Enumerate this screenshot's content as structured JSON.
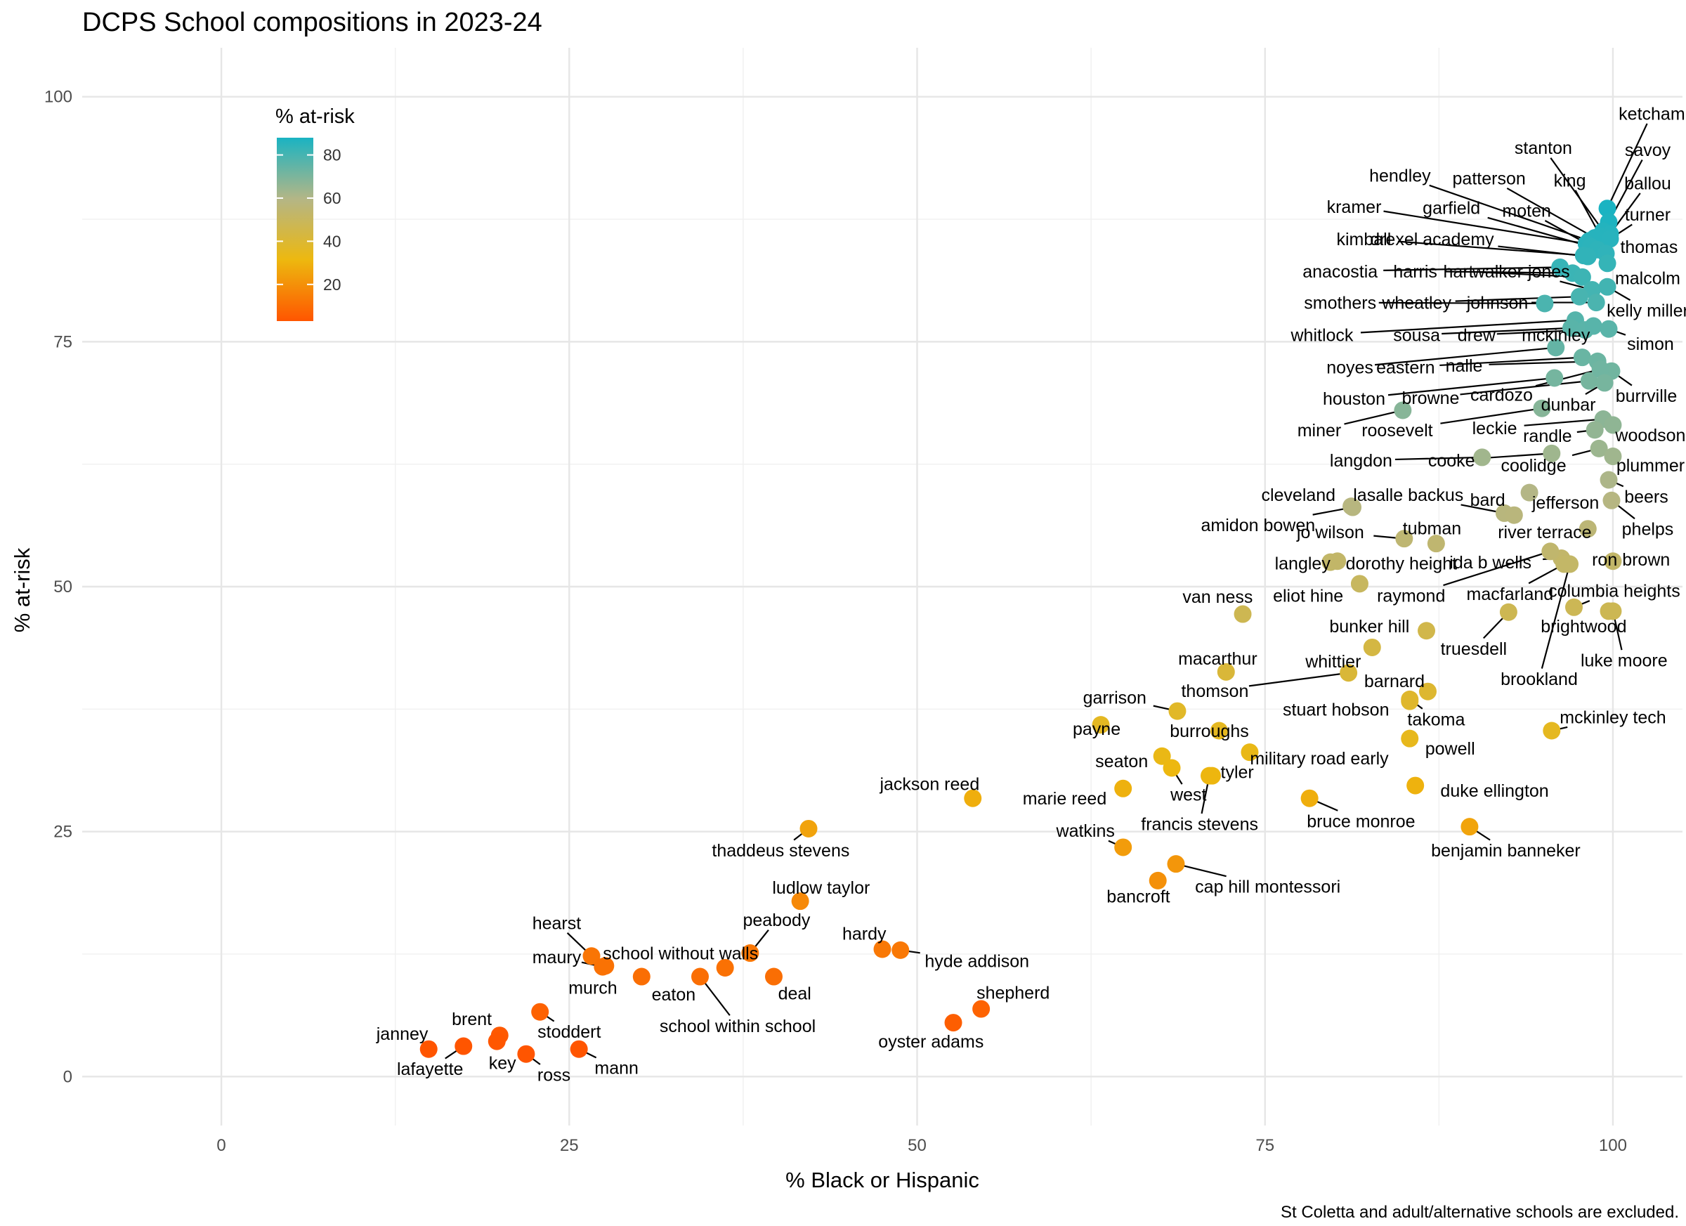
{
  "chart_data": {
    "type": "scatter",
    "title": "DCPS School compositions in 2023-24",
    "xlabel": "% Black or Hispanic",
    "ylabel": "% at-risk",
    "caption": "St Coletta and adult/alternative schools are excluded.",
    "xlim": [
      -10,
      105
    ],
    "ylim": [
      -5,
      105
    ],
    "x_ticks": [
      0,
      25,
      50,
      75,
      100
    ],
    "y_ticks": [
      0,
      25,
      50,
      75,
      100
    ],
    "grid": true,
    "legend": {
      "title": "% at-risk",
      "placement": "top-left",
      "ticks": [
        20,
        40,
        60,
        80
      ],
      "range": [
        3,
        88
      ],
      "colors": [
        "#FF5500",
        "#EDB80F",
        "#B4B686",
        "#1AB3C2"
      ]
    },
    "points": [
      {
        "name": "ketcham",
        "x": 99.6,
        "y": 88.6,
        "label": {
          "x": 102.8,
          "y": 98.3
        }
      },
      {
        "name": "savoy",
        "x": 99.7,
        "y": 87.2,
        "label": {
          "x": 102.5,
          "y": 94.6
        }
      },
      {
        "name": "stanton",
        "x": 99.3,
        "y": 86.3,
        "label": {
          "x": 95.0,
          "y": 94.8
        }
      },
      {
        "name": "ballou",
        "x": 99.8,
        "y": 86.0,
        "label": {
          "x": 102.5,
          "y": 91.2
        }
      },
      {
        "name": "king",
        "x": 99.1,
        "y": 85.8,
        "label": {
          "x": 96.9,
          "y": 91.5
        }
      },
      {
        "name": "hendley",
        "x": 98.3,
        "y": 85.3,
        "label": {
          "x": 84.7,
          "y": 92.0
        }
      },
      {
        "name": "patterson",
        "x": 98.7,
        "y": 85.6,
        "label": {
          "x": 91.1,
          "y": 91.7
        }
      },
      {
        "name": "turner",
        "x": 99.8,
        "y": 85.5,
        "label": {
          "x": 102.5,
          "y": 88.0
        }
      },
      {
        "name": "kramer",
        "x": 98.1,
        "y": 85.0,
        "label": {
          "x": 81.4,
          "y": 88.8
        }
      },
      {
        "name": "garfield",
        "x": 98.4,
        "y": 84.7,
        "label": {
          "x": 88.4,
          "y": 88.7
        }
      },
      {
        "name": "moten",
        "x": 98.9,
        "y": 84.4,
        "label": {
          "x": 93.8,
          "y": 88.4
        }
      },
      {
        "name": "thomas",
        "x": 99.5,
        "y": 84.0,
        "label": {
          "x": 102.6,
          "y": 84.7
        }
      },
      {
        "name": "kimball",
        "x": 97.9,
        "y": 83.8,
        "label": {
          "x": 82.1,
          "y": 85.5
        }
      },
      {
        "name": "drexel academy",
        "x": 98.2,
        "y": 83.7,
        "label": {
          "x": 87.0,
          "y": 85.5
        }
      },
      {
        "name": "malcolm",
        "x": 99.6,
        "y": 83.0,
        "label": {
          "x": 102.5,
          "y": 81.5
        }
      },
      {
        "name": "anacostia",
        "x": 96.2,
        "y": 82.6,
        "label": {
          "x": 80.4,
          "y": 82.2
        }
      },
      {
        "name": "harris",
        "x": 97.1,
        "y": 82.0,
        "label": {
          "x": 85.8,
          "y": 82.2
        }
      },
      {
        "name": "hart",
        "x": 97.8,
        "y": 81.6,
        "label": {
          "x": 88.9,
          "y": 82.2
        }
      },
      {
        "name": "walker jones",
        "x": 98.5,
        "y": 80.3,
        "label": {
          "x": 93.4,
          "y": 82.2
        }
      },
      {
        "name": "kelly miller",
        "x": 99.6,
        "y": 80.6,
        "label": {
          "x": 102.5,
          "y": 78.2
        }
      },
      {
        "name": "smothers",
        "x": 95.1,
        "y": 78.9,
        "label": {
          "x": 80.4,
          "y": 79.0
        }
      },
      {
        "name": "wheatley",
        "x": 97.6,
        "y": 79.6,
        "label": {
          "x": 85.9,
          "y": 79.0
        }
      },
      {
        "name": "johnson",
        "x": 98.8,
        "y": 79.0,
        "label": {
          "x": 91.7,
          "y": 79.0
        }
      },
      {
        "name": "whitlock",
        "x": 97.3,
        "y": 77.2,
        "label": {
          "x": 79.1,
          "y": 75.7
        }
      },
      {
        "name": "sousa",
        "x": 97.0,
        "y": 76.4,
        "label": {
          "x": 85.9,
          "y": 75.7
        }
      },
      {
        "name": "drew",
        "x": 98.0,
        "y": 76.2,
        "label": {
          "x": 90.2,
          "y": 75.7
        }
      },
      {
        "name": "mckinley",
        "x": 98.6,
        "y": 76.6,
        "label": {
          "x": 95.9,
          "y": 75.7
        }
      },
      {
        "name": "simon",
        "x": 99.7,
        "y": 76.3,
        "label": {
          "x": 102.7,
          "y": 74.8
        }
      },
      {
        "name": "noyes",
        "x": 95.9,
        "y": 74.4,
        "label": {
          "x": 81.1,
          "y": 72.4
        }
      },
      {
        "name": "eastern",
        "x": 97.8,
        "y": 73.4,
        "label": {
          "x": 85.1,
          "y": 72.4
        }
      },
      {
        "name": "nalle",
        "x": 98.9,
        "y": 73.0,
        "label": {
          "x": 89.3,
          "y": 72.6
        }
      },
      {
        "name": "burrville",
        "x": 99.9,
        "y": 72.0,
        "label": {
          "x": 102.4,
          "y": 69.5
        }
      },
      {
        "name": "houston",
        "x": 95.8,
        "y": 71.3,
        "label": {
          "x": 81.4,
          "y": 69.2
        }
      },
      {
        "name": "browne",
        "x": 98.3,
        "y": 71.0,
        "label": {
          "x": 86.9,
          "y": 69.3
        }
      },
      {
        "name": "cardozo",
        "x": 99.1,
        "y": 72.2,
        "label": {
          "x": 92.0,
          "y": 69.6
        }
      },
      {
        "name": "dunbar",
        "x": 99.4,
        "y": 70.8,
        "label": {
          "x": 96.8,
          "y": 68.6
        }
      },
      {
        "name": "miner",
        "x": 84.9,
        "y": 68.0,
        "label": {
          "x": 78.9,
          "y": 66.0
        }
      },
      {
        "name": "roosevelt",
        "x": 94.9,
        "y": 68.2,
        "label": {
          "x": 84.5,
          "y": 66.0
        }
      },
      {
        "name": "leckie",
        "x": 99.3,
        "y": 67.1,
        "label": {
          "x": 91.5,
          "y": 66.2
        }
      },
      {
        "name": "randle",
        "x": 98.7,
        "y": 66.0,
        "label": {
          "x": 95.3,
          "y": 65.4
        }
      },
      {
        "name": "woodson",
        "x": 100.0,
        "y": 66.5,
        "label": {
          "x": 102.7,
          "y": 65.5
        }
      },
      {
        "name": "langdon",
        "x": 90.6,
        "y": 63.2,
        "label": {
          "x": 81.9,
          "y": 62.9
        }
      },
      {
        "name": "cooke",
        "x": 95.6,
        "y": 63.6,
        "label": {
          "x": 88.4,
          "y": 62.9
        }
      },
      {
        "name": "coolidge",
        "x": 99.0,
        "y": 64.1,
        "label": {
          "x": 94.3,
          "y": 62.4
        }
      },
      {
        "name": "plummer",
        "x": 100.0,
        "y": 63.3,
        "label": {
          "x": 102.7,
          "y": 62.4
        }
      },
      {
        "name": "beers",
        "x": 99.7,
        "y": 60.9,
        "label": {
          "x": 102.4,
          "y": 59.2
        }
      },
      {
        "name": "cleveland",
        "x": 81.2,
        "y": 58.2,
        "label": {
          "x": 77.4,
          "y": 59.4
        }
      },
      {
        "name": "lasalle backus",
        "x": 92.2,
        "y": 57.5,
        "label": {
          "x": 85.3,
          "y": 59.4
        }
      },
      {
        "name": "bard",
        "x": 92.9,
        "y": 57.3,
        "label": {
          "x": 91.0,
          "y": 58.9
        }
      },
      {
        "name": "jefferson",
        "x": 94.0,
        "y": 59.6,
        "label": {
          "x": 96.6,
          "y": 58.6
        }
      },
      {
        "name": "phelps",
        "x": 99.9,
        "y": 58.8,
        "label": {
          "x": 102.5,
          "y": 55.9
        }
      },
      {
        "name": "amidon bowen",
        "x": 81.3,
        "y": 58.1,
        "label": {
          "x": 74.5,
          "y": 56.3
        }
      },
      {
        "name": "jo wilson",
        "x": 85.0,
        "y": 54.9,
        "label": {
          "x": 79.7,
          "y": 55.6
        }
      },
      {
        "name": "tubman",
        "x": 87.3,
        "y": 54.4,
        "label": {
          "x": 87.0,
          "y": 56.0
        }
      },
      {
        "name": "river terrace",
        "x": 98.2,
        "y": 55.9,
        "label": {
          "x": 95.1,
          "y": 55.6
        }
      },
      {
        "name": "langley",
        "x": 79.7,
        "y": 52.5,
        "label": {
          "x": 77.7,
          "y": 52.4
        }
      },
      {
        "name": "dorothy height",
        "x": 80.2,
        "y": 52.6,
        "label": {
          "x": 84.8,
          "y": 52.4
        }
      },
      {
        "name": "ida b wells",
        "x": 96.3,
        "y": 52.9,
        "label": {
          "x": 91.2,
          "y": 52.5
        }
      },
      {
        "name": "ron brown",
        "x": 100.0,
        "y": 52.6,
        "label": {
          "x": 101.3,
          "y": 52.8
        }
      },
      {
        "name": "van ness",
        "x": 73.4,
        "y": 47.2,
        "label": {
          "x": 71.6,
          "y": 49.0
        }
      },
      {
        "name": "eliot hine",
        "x": 81.8,
        "y": 50.3,
        "label": {
          "x": 78.1,
          "y": 49.1
        }
      },
      {
        "name": "raymond",
        "x": 95.5,
        "y": 53.6,
        "label": {
          "x": 85.5,
          "y": 49.1
        }
      },
      {
        "name": "macfarland",
        "x": 96.5,
        "y": 52.3,
        "label": {
          "x": 92.6,
          "y": 49.3
        }
      },
      {
        "name": "columbia heights",
        "x": 97.2,
        "y": 47.9,
        "label": {
          "x": 100.1,
          "y": 49.6
        }
      },
      {
        "name": "bunker hill",
        "x": 86.6,
        "y": 45.5,
        "label": {
          "x": 82.5,
          "y": 46.0
        }
      },
      {
        "name": "brightwood",
        "x": 99.7,
        "y": 47.5,
        "label": {
          "x": 97.9,
          "y": 46.0
        }
      },
      {
        "name": "truesdell",
        "x": 92.5,
        "y": 47.4,
        "label": {
          "x": 90.0,
          "y": 43.7
        }
      },
      {
        "name": "luke moore",
        "x": 100.0,
        "y": 47.5,
        "label": {
          "x": 100.8,
          "y": 42.5
        }
      },
      {
        "name": "macarthur",
        "x": 72.2,
        "y": 41.3,
        "label": {
          "x": 71.6,
          "y": 42.7
        }
      },
      {
        "name": "whittier",
        "x": 82.7,
        "y": 43.8,
        "label": {
          "x": 79.9,
          "y": 42.4
        }
      },
      {
        "name": "brookland",
        "x": 96.9,
        "y": 52.3,
        "label": {
          "x": 94.7,
          "y": 40.6
        }
      },
      {
        "name": "thomson",
        "x": 81.0,
        "y": 41.2,
        "label": {
          "x": 71.4,
          "y": 39.4
        }
      },
      {
        "name": "barnard",
        "x": 86.7,
        "y": 39.3,
        "label": {
          "x": 84.3,
          "y": 40.4
        }
      },
      {
        "name": "garrison",
        "x": 68.7,
        "y": 37.3,
        "label": {
          "x": 64.2,
          "y": 38.7
        }
      },
      {
        "name": "stuart hobson",
        "x": 85.4,
        "y": 38.3,
        "label": {
          "x": 80.1,
          "y": 37.5
        }
      },
      {
        "name": "takoma",
        "x": 85.4,
        "y": 38.5,
        "label": {
          "x": 87.3,
          "y": 36.5
        }
      },
      {
        "name": "mckinley tech",
        "x": 95.6,
        "y": 35.3,
        "label": {
          "x": 100.0,
          "y": 36.7
        }
      },
      {
        "name": "payne",
        "x": 63.2,
        "y": 35.9,
        "label": {
          "x": 62.9,
          "y": 35.5
        }
      },
      {
        "name": "burroughs",
        "x": 71.7,
        "y": 35.3,
        "label": {
          "x": 71.0,
          "y": 35.3
        }
      },
      {
        "name": "military road early",
        "x": 73.9,
        "y": 33.1,
        "label": {
          "x": 78.9,
          "y": 32.5
        }
      },
      {
        "name": "powell",
        "x": 85.4,
        "y": 34.5,
        "label": {
          "x": 88.3,
          "y": 33.5
        }
      },
      {
        "name": "seaton",
        "x": 67.6,
        "y": 32.7,
        "label": {
          "x": 64.7,
          "y": 32.2
        }
      },
      {
        "name": "tyler",
        "x": 71.2,
        "y": 30.7,
        "label": {
          "x": 73.0,
          "y": 31.1
        }
      },
      {
        "name": "marie reed",
        "x": 64.8,
        "y": 29.4,
        "label": {
          "x": 60.6,
          "y": 28.4
        }
      },
      {
        "name": "west",
        "x": 68.3,
        "y": 31.5,
        "label": {
          "x": 69.5,
          "y": 28.8
        }
      },
      {
        "name": "duke ellington",
        "x": 85.8,
        "y": 29.7,
        "label": {
          "x": 91.5,
          "y": 29.2
        }
      },
      {
        "name": "jackson reed",
        "x": 54.0,
        "y": 28.4,
        "label": {
          "x": 50.9,
          "y": 29.9
        }
      },
      {
        "name": "francis stevens",
        "x": 71.0,
        "y": 30.7,
        "label": {
          "x": 70.3,
          "y": 25.8
        }
      },
      {
        "name": "bruce monroe",
        "x": 78.2,
        "y": 28.4,
        "label": {
          "x": 81.9,
          "y": 26.1
        }
      },
      {
        "name": "watkins",
        "x": 64.8,
        "y": 23.4,
        "label": {
          "x": 62.1,
          "y": 25.1
        }
      },
      {
        "name": "thaddeus stevens",
        "x": 42.2,
        "y": 25.3,
        "label": {
          "x": 40.2,
          "y": 23.1
        }
      },
      {
        "name": "benjamin banneker",
        "x": 89.7,
        "y": 25.5,
        "label": {
          "x": 92.3,
          "y": 23.1
        }
      },
      {
        "name": "ludlow taylor",
        "x": 41.6,
        "y": 17.9,
        "label": {
          "x": 43.1,
          "y": 19.3
        }
      },
      {
        "name": "cap hill montessori",
        "x": 68.6,
        "y": 21.7,
        "label": {
          "x": 75.2,
          "y": 19.4
        }
      },
      {
        "name": "bancroft",
        "x": 67.3,
        "y": 20.0,
        "label": {
          "x": 65.9,
          "y": 18.4
        }
      },
      {
        "name": "hearst",
        "x": 26.6,
        "y": 12.3,
        "label": {
          "x": 24.1,
          "y": 15.7
        }
      },
      {
        "name": "peabody",
        "x": 38.0,
        "y": 12.6,
        "label": {
          "x": 39.9,
          "y": 16.0
        }
      },
      {
        "name": "hardy",
        "x": 47.5,
        "y": 13.0,
        "label": {
          "x": 46.2,
          "y": 14.6
        }
      },
      {
        "name": "maury",
        "x": 27.4,
        "y": 11.2,
        "label": {
          "x": 24.1,
          "y": 12.2
        }
      },
      {
        "name": "school without walls",
        "x": 36.2,
        "y": 11.1,
        "label": {
          "x": 33.0,
          "y": 12.6
        }
      },
      {
        "name": "hyde addison",
        "x": 48.8,
        "y": 12.9,
        "label": {
          "x": 54.3,
          "y": 11.8
        }
      },
      {
        "name": "murch",
        "x": 27.6,
        "y": 11.3,
        "label": {
          "x": 26.7,
          "y": 9.1
        }
      },
      {
        "name": "eaton",
        "x": 30.2,
        "y": 10.2,
        "label": {
          "x": 32.5,
          "y": 8.4
        }
      },
      {
        "name": "deal",
        "x": 39.7,
        "y": 10.2,
        "label": {
          "x": 41.2,
          "y": 8.5
        }
      },
      {
        "name": "shepherd",
        "x": 54.6,
        "y": 6.9,
        "label": {
          "x": 56.9,
          "y": 8.6
        }
      },
      {
        "name": "school within school",
        "x": 34.4,
        "y": 10.2,
        "label": {
          "x": 37.1,
          "y": 5.2
        }
      },
      {
        "name": "brent",
        "x": 20.0,
        "y": 4.2,
        "label": {
          "x": 18.0,
          "y": 5.9
        }
      },
      {
        "name": "stoddert",
        "x": 22.9,
        "y": 6.6,
        "label": {
          "x": 25.0,
          "y": 4.6
        }
      },
      {
        "name": "janney",
        "x": 14.9,
        "y": 2.8,
        "label": {
          "x": 13.0,
          "y": 4.4
        }
      },
      {
        "name": "oyster adams",
        "x": 52.6,
        "y": 5.5,
        "label": {
          "x": 51.0,
          "y": 3.6
        }
      },
      {
        "name": "lafayette",
        "x": 17.4,
        "y": 3.1,
        "label": {
          "x": 15.0,
          "y": 0.8
        }
      },
      {
        "name": "key",
        "x": 19.8,
        "y": 3.6,
        "label": {
          "x": 20.2,
          "y": 1.4
        }
      },
      {
        "name": "ross",
        "x": 21.9,
        "y": 2.3,
        "label": {
          "x": 23.9,
          "y": 0.2
        }
      },
      {
        "name": "mann",
        "x": 25.7,
        "y": 2.8,
        "label": {
          "x": 28.4,
          "y": 0.9
        }
      }
    ]
  }
}
